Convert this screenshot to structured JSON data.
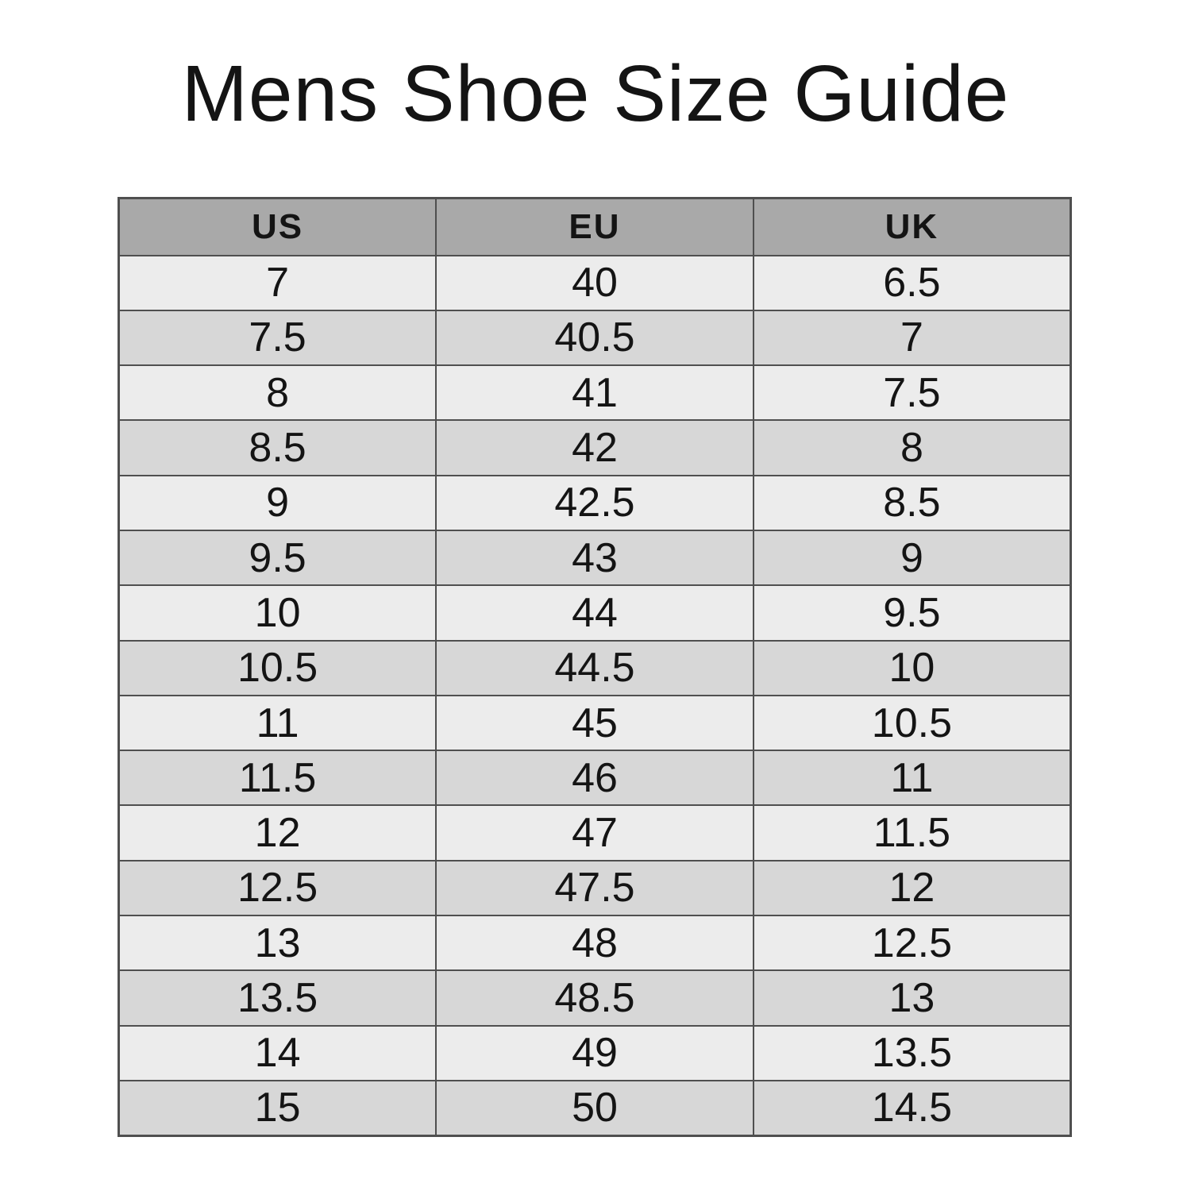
{
  "title": "Mens Shoe Size Guide",
  "table": {
    "headers": [
      "US",
      "EU",
      "UK"
    ],
    "rows": [
      [
        "7",
        "40",
        "6.5"
      ],
      [
        "7.5",
        "40.5",
        "7"
      ],
      [
        "8",
        "41",
        "7.5"
      ],
      [
        "8.5",
        "42",
        "8"
      ],
      [
        "9",
        "42.5",
        "8.5"
      ],
      [
        "9.5",
        "43",
        "9"
      ],
      [
        "10",
        "44",
        "9.5"
      ],
      [
        "10.5",
        "44.5",
        "10"
      ],
      [
        "11",
        "45",
        "10.5"
      ],
      [
        "11.5",
        "46",
        "11"
      ],
      [
        "12",
        "47",
        "11.5"
      ],
      [
        "12.5",
        "47.5",
        "12"
      ],
      [
        "13",
        "48",
        "12.5"
      ],
      [
        "13.5",
        "48.5",
        "13"
      ],
      [
        "14",
        "49",
        "13.5"
      ],
      [
        "15",
        "50",
        "14.5"
      ]
    ]
  },
  "colors": {
    "page_bg": "#ffffff",
    "title_text": "#141414",
    "text": "#141414",
    "header_bg": "#a9a9a9",
    "row_light": "#ececec",
    "row_dark": "#d7d7d7",
    "border": "#4f4f4f"
  },
  "chart_data": {
    "type": "table",
    "title": "Mens Shoe Size Guide",
    "columns": [
      "US",
      "EU",
      "UK"
    ],
    "rows": [
      [
        "7",
        "40",
        "6.5"
      ],
      [
        "7.5",
        "40.5",
        "7"
      ],
      [
        "8",
        "41",
        "7.5"
      ],
      [
        "8.5",
        "42",
        "8"
      ],
      [
        "9",
        "42.5",
        "8.5"
      ],
      [
        "9.5",
        "43",
        "9"
      ],
      [
        "10",
        "44",
        "9.5"
      ],
      [
        "10.5",
        "44.5",
        "10"
      ],
      [
        "11",
        "45",
        "10.5"
      ],
      [
        "11.5",
        "46",
        "11"
      ],
      [
        "12",
        "47",
        "11.5"
      ],
      [
        "12.5",
        "47.5",
        "12"
      ],
      [
        "13",
        "48",
        "12.5"
      ],
      [
        "13.5",
        "48.5",
        "13"
      ],
      [
        "14",
        "49",
        "13.5"
      ],
      [
        "15",
        "50",
        "14.5"
      ]
    ],
    "layout_hints": {
      "header_background": "#a9a9a9",
      "zebra_striping": true,
      "row_light": "#ececec",
      "row_dark": "#d7d7d7",
      "grid": true
    }
  }
}
